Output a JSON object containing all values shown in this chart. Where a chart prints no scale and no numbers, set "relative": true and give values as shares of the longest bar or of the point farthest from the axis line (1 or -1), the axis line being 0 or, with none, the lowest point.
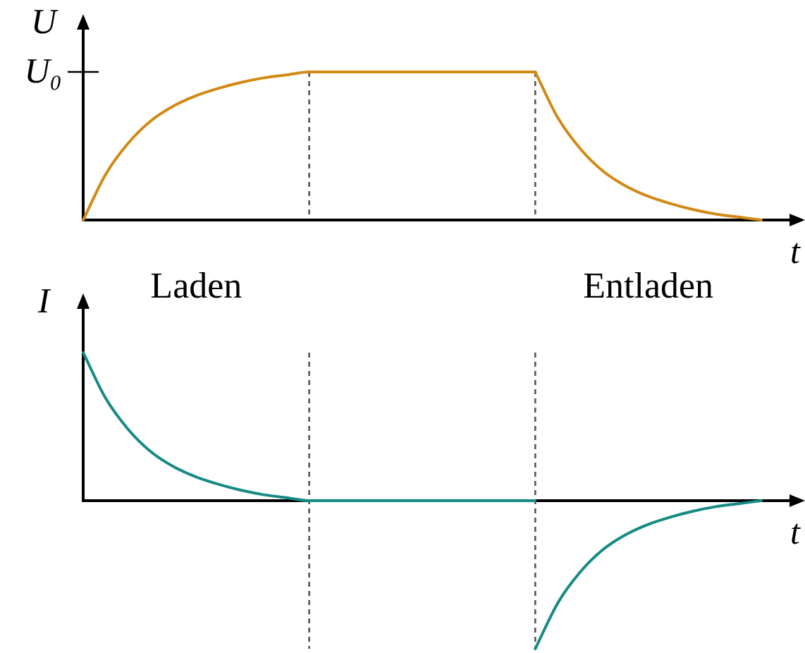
{
  "chart_data": [
    {
      "type": "line",
      "ylabel": "U",
      "xlabel": "t",
      "relative": true,
      "categories": [
        null,
        null,
        null,
        null,
        null,
        null,
        null,
        null,
        null,
        null,
        null,
        null,
        null,
        null,
        null,
        null,
        null,
        null,
        null,
        null,
        null,
        null,
        null,
        null,
        null,
        null,
        null,
        null,
        null,
        null,
        null
      ],
      "series": [
        {
          "color": "#d18a14",
          "values": [
            0,
            0.31,
            0.52,
            0.67,
            0.77,
            0.84,
            0.89,
            0.93,
            0.96,
            0.98,
            1,
            1,
            1,
            1,
            1,
            1,
            1,
            1,
            1,
            1,
            1,
            null,
            null,
            null,
            null,
            null,
            null,
            null,
            null,
            null,
            null
          ]
        },
        {
          "color": "#d18a14",
          "values": [
            null,
            null,
            null,
            null,
            null,
            null,
            null,
            null,
            null,
            null,
            null,
            null,
            null,
            null,
            null,
            null,
            null,
            null,
            null,
            null,
            1,
            0.69,
            0.48,
            0.33,
            0.23,
            0.16,
            0.11,
            0.07,
            0.04,
            0.02,
            0
          ]
        }
      ],
      "annotations": [
        "U₀"
      ]
    },
    {
      "type": "line",
      "ylabel": "I",
      "xlabel": "t",
      "relative": true,
      "categories": [
        null,
        null,
        null,
        null,
        null,
        null,
        null,
        null,
        null,
        null,
        null,
        null,
        null,
        null,
        null,
        null,
        null,
        null,
        null,
        null,
        null,
        null,
        null,
        null,
        null,
        null,
        null,
        null,
        null,
        null,
        null
      ],
      "series": [
        {
          "color": "#178a84",
          "values": [
            1,
            0.69,
            0.48,
            0.33,
            0.23,
            0.16,
            0.11,
            0.07,
            0.04,
            0.02,
            0,
            0,
            0,
            0,
            0,
            0,
            0,
            0,
            0,
            0,
            0,
            null,
            null,
            null,
            null,
            null,
            null,
            null,
            null,
            null,
            null
          ]
        },
        {
          "color": "#178a84",
          "values": [
            null,
            null,
            null,
            null,
            null,
            null,
            null,
            null,
            null,
            null,
            null,
            null,
            null,
            null,
            null,
            null,
            null,
            null,
            null,
            null,
            -1,
            -0.69,
            -0.48,
            -0.33,
            -0.23,
            -0.16,
            -0.11,
            -0.07,
            -0.04,
            -0.02,
            0
          ]
        }
      ],
      "annotations": [
        "Laden",
        "Entladen"
      ]
    }
  ]
}
